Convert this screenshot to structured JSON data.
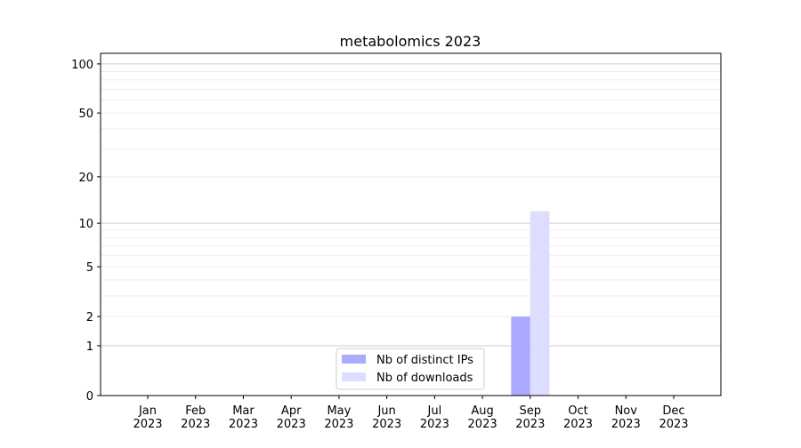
{
  "chart_data": {
    "type": "bar",
    "title": "metabolomics 2023",
    "xlabel": "",
    "ylabel": "",
    "y_scale": "log(1+x)",
    "ylim": [
      0,
      116
    ],
    "yticks": [
      0,
      1,
      2,
      5,
      10,
      20,
      50,
      100
    ],
    "grid": true,
    "legend_position": "lower-center",
    "categories": [
      "Jan\n2023",
      "Feb\n2023",
      "Mar\n2023",
      "Apr\n2023",
      "May\n2023",
      "Jun\n2023",
      "Jul\n2023",
      "Aug\n2023",
      "Sep\n2023",
      "Oct\n2023",
      "Nov\n2023",
      "Dec\n2023"
    ],
    "series": [
      {
        "name": "Nb of distinct IPs",
        "color": "#aaaaff",
        "values": [
          0,
          0,
          0,
          0,
          0,
          0,
          0,
          0,
          2,
          0,
          0,
          0
        ]
      },
      {
        "name": "Nb of downloads",
        "color": "#ddddff",
        "values": [
          0,
          0,
          0,
          0,
          0,
          0,
          0,
          0,
          12,
          0,
          0,
          0
        ]
      }
    ]
  }
}
